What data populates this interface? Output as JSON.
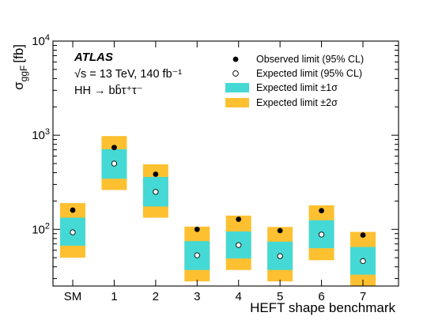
{
  "colors": {
    "band1": "#45d9d5",
    "band2": "#fdc030",
    "axis": "#000000",
    "observed": "#000000"
  },
  "chart_data": {
    "type": "scatter",
    "yscale": "log",
    "ylim": [
      25,
      10000
    ],
    "categories": [
      "SM",
      "1",
      "2",
      "3",
      "4",
      "5",
      "6",
      "7"
    ],
    "xlabel": "HEFT shape benchmark",
    "ylabel_main": "σ",
    "ylabel_sub": "ggF",
    "ylabel_unit": "[fb]",
    "yticks": [
      {
        "value": 100,
        "mant": "10",
        "exp": "2"
      },
      {
        "value": 1000,
        "mant": "10",
        "exp": "3"
      },
      {
        "value": 10000,
        "mant": "10",
        "exp": "4"
      }
    ],
    "series": [
      {
        "name": "Observed limit (95% CL)",
        "values": [
          160,
          740,
          385,
          100,
          128,
          97,
          158,
          87
        ]
      },
      {
        "name": "Expected limit (95% CL)",
        "values": [
          93,
          500,
          250,
          53,
          68,
          52,
          88,
          46
        ]
      },
      {
        "name": "Expected limit ±1σ",
        "low": [
          67,
          345,
          175,
          37,
          49,
          37,
          63,
          33
        ],
        "high": [
          133,
          710,
          360,
          75,
          95,
          74,
          125,
          65
        ]
      },
      {
        "name": "Expected limit ±2σ",
        "low": [
          50,
          262,
          133,
          28,
          37,
          28,
          47,
          25
        ],
        "high": [
          190,
          980,
          490,
          107,
          140,
          106,
          180,
          94
        ]
      }
    ],
    "experiment": "ATLAS",
    "energy": "√s = 13 TeV, 140 fb⁻¹",
    "process": "HH → bb̄τ⁺τ⁻"
  }
}
